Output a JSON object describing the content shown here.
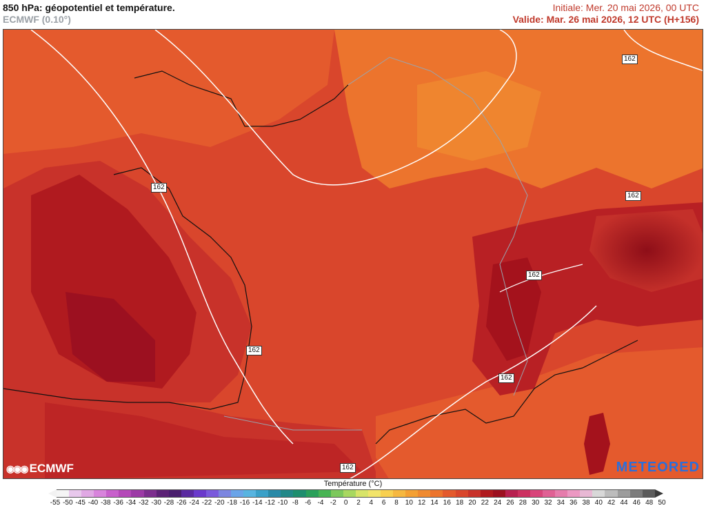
{
  "header": {
    "title": "850 hPa: géopotentiel et température.",
    "model": "ECMWF (0.10°)",
    "init": "Initiale: Mer. 20 mai 2026, 00 UTC",
    "valid": "Valide: Mar. 26 mai 2026, 12 UTC (H+156)"
  },
  "map": {
    "contour_labels": [
      "162",
      "162",
      "162",
      "162",
      "162",
      "162"
    ],
    "colors": {
      "sea_warm": "#b01a1f",
      "land_main": "#d9462c",
      "land_warm": "#e45a2d",
      "north_east": "#ee7a33",
      "alps_dark": "#a4121c"
    }
  },
  "logos": {
    "ecmwf": "ECMWF",
    "meteored": "METEORED"
  },
  "legend": {
    "title": "Température (°C)",
    "ticks": [
      "-55",
      "-50",
      "-45",
      "-40",
      "-38",
      "-36",
      "-34",
      "-32",
      "-30",
      "-28",
      "-26",
      "-24",
      "-22",
      "-20",
      "-18",
      "-16",
      "-14",
      "-12",
      "-10",
      "-8",
      "-6",
      "-4",
      "-2",
      "0",
      "2",
      "4",
      "6",
      "8",
      "10",
      "12",
      "14",
      "16",
      "18",
      "20",
      "22",
      "24",
      "26",
      "28",
      "30",
      "32",
      "34",
      "36",
      "38",
      "40",
      "42",
      "44",
      "46",
      "48",
      "50"
    ],
    "colors": [
      "#f5f5f5",
      "#e8c8ec",
      "#e0a8e4",
      "#d884dc",
      "#c860cc",
      "#b448b8",
      "#9c3aa6",
      "#7c2e8e",
      "#5c2276",
      "#4a1f6e",
      "#5a2aa0",
      "#6a3acc",
      "#7a5adc",
      "#7c86e0",
      "#6aa4e8",
      "#58b4e0",
      "#3aa0c8",
      "#2a8aa8",
      "#228888",
      "#1e8e6e",
      "#2aa05a",
      "#48b454",
      "#7cc85c",
      "#a8d860",
      "#d8e468",
      "#f2e46a",
      "#f8d050",
      "#f6b840",
      "#f4a033",
      "#f08a2f",
      "#ec742d",
      "#e45a2d",
      "#d9462c",
      "#c8322a",
      "#b01a1f",
      "#9c1020",
      "#b82050",
      "#cc3060",
      "#d8447a",
      "#e06094",
      "#e67cac",
      "#ec98c2",
      "#e8b8d4",
      "#d8d8d8",
      "#bcbcbc",
      "#9c9c9c",
      "#7c7c7c",
      "#5c5c5c"
    ]
  }
}
